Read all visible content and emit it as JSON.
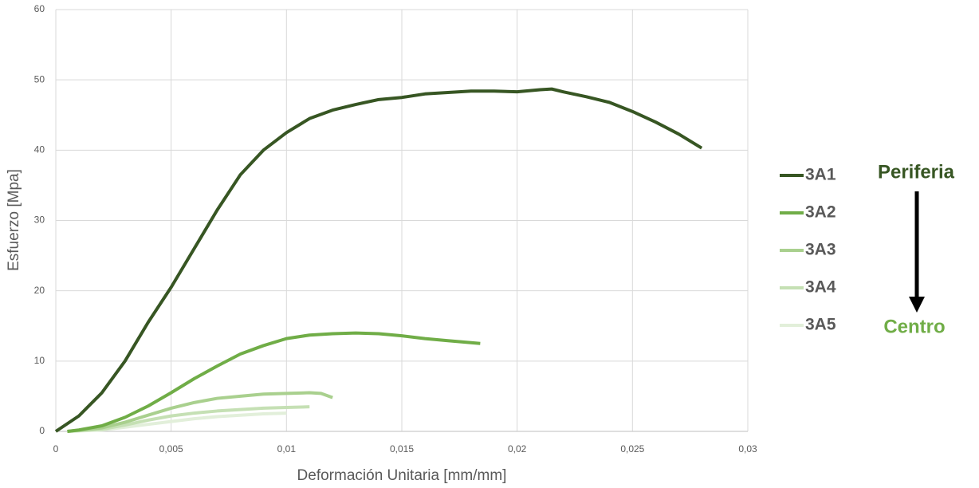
{
  "chart_data": {
    "type": "line",
    "x_label": "Deformación Unitaria [mm/mm]",
    "y_label": "Esfuerzo [Mpa]",
    "xlim": [
      0,
      0.03
    ],
    "xticks": [
      0,
      {
        "value": 0.005,
        "label": "0,005"
      },
      {
        "value": 0.01,
        "label": "0,01"
      },
      {
        "value": 0.015,
        "label": "0,015"
      },
      {
        "value": 0.02,
        "label": "0,02"
      },
      {
        "value": 0.025,
        "label": "0,025"
      },
      {
        "value": 0.03,
        "label": "0,03"
      }
    ],
    "ylim": [
      0,
      60
    ],
    "yticks": [
      0,
      10,
      20,
      30,
      40,
      50,
      60
    ],
    "grid": true,
    "legend": "right",
    "annotations": [
      {
        "text": "Periferia",
        "color": "#375623"
      },
      {
        "text": "Centro",
        "color": "#70ad47"
      }
    ],
    "series": [
      {
        "name": "3A1",
        "color": "#375623",
        "x": [
          0,
          0.001,
          0.002,
          0.003,
          0.004,
          0.005,
          0.006,
          0.007,
          0.008,
          0.009,
          0.01,
          0.011,
          0.012,
          0.013,
          0.014,
          0.015,
          0.016,
          0.017,
          0.018,
          0.019,
          0.02,
          0.021,
          0.0215,
          0.022,
          0.023,
          0.024,
          0.025,
          0.026,
          0.027,
          0.028
        ],
        "values": [
          0,
          2.2,
          5.5,
          10,
          15.5,
          20.5,
          26,
          31.5,
          36.5,
          40,
          42.5,
          44.5,
          45.7,
          46.5,
          47.2,
          47.5,
          48,
          48.2,
          48.4,
          48.4,
          48.3,
          48.6,
          48.7,
          48.3,
          47.6,
          46.8,
          45.5,
          44,
          42.3,
          40.3
        ]
      },
      {
        "name": "3A2",
        "color": "#70ad47",
        "x": [
          0.0005,
          0.001,
          0.002,
          0.003,
          0.004,
          0.005,
          0.006,
          0.007,
          0.008,
          0.009,
          0.01,
          0.011,
          0.012,
          0.013,
          0.014,
          0.015,
          0.016,
          0.017,
          0.0184
        ],
        "values": [
          0,
          0.2,
          0.8,
          2,
          3.6,
          5.5,
          7.5,
          9.3,
          11,
          12.2,
          13.2,
          13.7,
          13.9,
          14,
          13.9,
          13.6,
          13.2,
          12.9,
          12.5
        ]
      },
      {
        "name": "3A3",
        "color": "#a9d08e",
        "x": [
          0.0005,
          0.002,
          0.003,
          0.004,
          0.005,
          0.006,
          0.007,
          0.008,
          0.009,
          0.01,
          0.011,
          0.0115,
          0.012
        ],
        "values": [
          0,
          0.5,
          1.3,
          2.3,
          3.3,
          4.1,
          4.7,
          5,
          5.3,
          5.4,
          5.5,
          5.4,
          4.8
        ]
      },
      {
        "name": "3A4",
        "color": "#c5e0b4",
        "x": [
          0.0005,
          0.002,
          0.003,
          0.004,
          0.005,
          0.006,
          0.007,
          0.008,
          0.009,
          0.01,
          0.011
        ],
        "values": [
          0,
          0.3,
          0.9,
          1.6,
          2.2,
          2.6,
          2.9,
          3.1,
          3.3,
          3.4,
          3.5
        ]
      },
      {
        "name": "3A5",
        "color": "#e2efda",
        "x": [
          0.0005,
          0.002,
          0.003,
          0.004,
          0.005,
          0.006,
          0.007,
          0.008,
          0.009,
          0.01
        ],
        "values": [
          0,
          0.2,
          0.6,
          1,
          1.4,
          1.8,
          2.1,
          2.3,
          2.5,
          2.6
        ]
      }
    ]
  }
}
